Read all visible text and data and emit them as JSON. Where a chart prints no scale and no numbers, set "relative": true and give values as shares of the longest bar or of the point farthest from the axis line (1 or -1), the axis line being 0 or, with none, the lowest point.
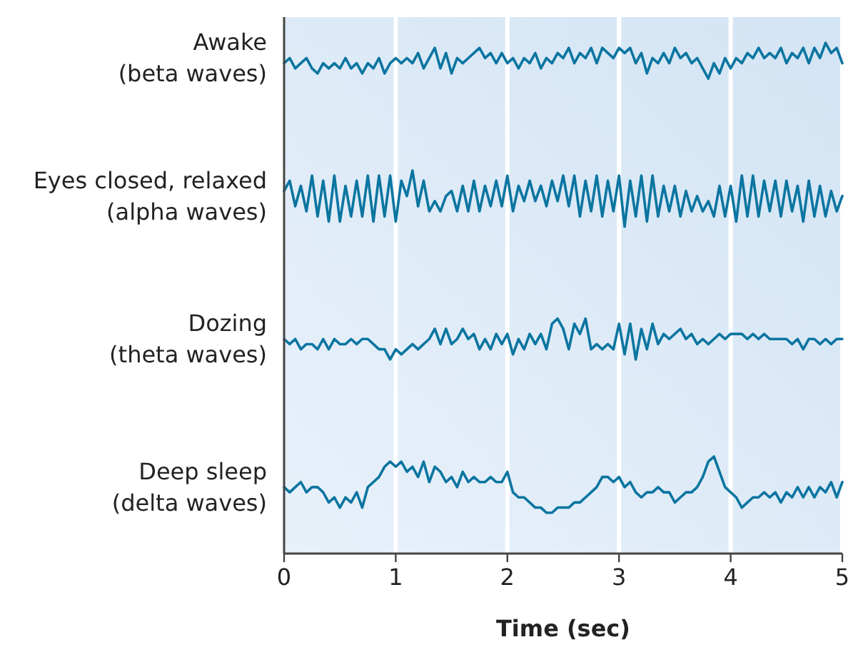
{
  "chart_data": {
    "type": "line",
    "relative": true,
    "xlabel": "Time (sec)",
    "xlim": [
      0,
      5
    ],
    "xticks": [
      0,
      1,
      2,
      3,
      4,
      5
    ],
    "grid": "x",
    "tick_labels": "x",
    "marker": "none",
    "line_style": "solid",
    "x": [
      0,
      0.05,
      0.1,
      0.15,
      0.2,
      0.25,
      0.3,
      0.35,
      0.4,
      0.45,
      0.5,
      0.55,
      0.6,
      0.65,
      0.7,
      0.75,
      0.8,
      0.85,
      0.9,
      0.95,
      1,
      1.05,
      1.1,
      1.15,
      1.2,
      1.25,
      1.3,
      1.35,
      1.4,
      1.45,
      1.5,
      1.55,
      1.6,
      1.65,
      1.7,
      1.75,
      1.8,
      1.85,
      1.9,
      1.95,
      2,
      2.05,
      2.1,
      2.15,
      2.2,
      2.25,
      2.3,
      2.35,
      2.4,
      2.45,
      2.5,
      2.55,
      2.6,
      2.65,
      2.7,
      2.75,
      2.8,
      2.85,
      2.9,
      2.95,
      3,
      3.05,
      3.1,
      3.15,
      3.2,
      3.25,
      3.3,
      3.35,
      3.4,
      3.45,
      3.5,
      3.55,
      3.6,
      3.65,
      3.7,
      3.75,
      3.8,
      3.85,
      3.9,
      3.95,
      4,
      4.05,
      4.1,
      4.15,
      4.2,
      4.25,
      4.3,
      4.35,
      4.4,
      4.45,
      4.5,
      4.55,
      4.6,
      4.65,
      4.7,
      4.75,
      4.8,
      4.85,
      4.9,
      4.95,
      5
    ],
    "series": [
      {
        "name": "Awake\n(beta waves)",
        "color": "#0b75a0",
        "values": [
          0.96,
          0.97,
          0.95,
          0.96,
          0.97,
          0.95,
          0.94,
          0.96,
          0.95,
          0.96,
          0.95,
          0.97,
          0.95,
          0.96,
          0.94,
          0.96,
          0.95,
          0.97,
          0.94,
          0.96,
          0.97,
          0.96,
          0.97,
          0.96,
          0.98,
          0.95,
          0.97,
          0.99,
          0.95,
          0.98,
          0.94,
          0.97,
          0.96,
          0.97,
          0.98,
          0.99,
          0.97,
          0.98,
          0.96,
          0.98,
          0.96,
          0.97,
          0.95,
          0.97,
          0.96,
          0.98,
          0.95,
          0.97,
          0.96,
          0.98,
          0.97,
          0.99,
          0.96,
          0.98,
          0.97,
          0.99,
          0.96,
          0.99,
          0.98,
          0.97,
          0.99,
          0.98,
          0.99,
          0.96,
          0.98,
          0.94,
          0.97,
          0.96,
          0.98,
          0.96,
          0.99,
          0.97,
          0.98,
          0.96,
          0.97,
          0.95,
          0.93,
          0.96,
          0.94,
          0.97,
          0.95,
          0.97,
          0.96,
          0.98,
          0.97,
          0.99,
          0.97,
          0.98,
          0.97,
          0.99,
          0.96,
          0.98,
          0.97,
          0.99,
          0.96,
          0.99,
          0.97,
          1.0,
          0.98,
          0.99,
          0.96
        ]
      },
      {
        "name": "Eyes closed, relaxed\n(alpha waves)",
        "color": "#0b75a0",
        "values": [
          0.71,
          0.73,
          0.68,
          0.72,
          0.67,
          0.74,
          0.66,
          0.73,
          0.65,
          0.74,
          0.65,
          0.72,
          0.66,
          0.73,
          0.66,
          0.74,
          0.65,
          0.74,
          0.66,
          0.74,
          0.65,
          0.73,
          0.7,
          0.75,
          0.68,
          0.73,
          0.67,
          0.69,
          0.67,
          0.7,
          0.71,
          0.67,
          0.72,
          0.67,
          0.73,
          0.67,
          0.72,
          0.68,
          0.73,
          0.68,
          0.74,
          0.67,
          0.72,
          0.69,
          0.73,
          0.69,
          0.72,
          0.68,
          0.73,
          0.69,
          0.74,
          0.68,
          0.74,
          0.66,
          0.73,
          0.67,
          0.74,
          0.66,
          0.73,
          0.67,
          0.74,
          0.64,
          0.73,
          0.66,
          0.74,
          0.65,
          0.74,
          0.66,
          0.72,
          0.67,
          0.72,
          0.66,
          0.71,
          0.67,
          0.7,
          0.67,
          0.69,
          0.66,
          0.72,
          0.66,
          0.72,
          0.65,
          0.74,
          0.66,
          0.74,
          0.66,
          0.73,
          0.67,
          0.73,
          0.66,
          0.73,
          0.67,
          0.72,
          0.65,
          0.73,
          0.66,
          0.72,
          0.66,
          0.71,
          0.67,
          0.7
        ]
      },
      {
        "name": "Dozing\n(theta waves)",
        "color": "#0b75a0",
        "values": [
          0.42,
          0.41,
          0.42,
          0.4,
          0.41,
          0.41,
          0.4,
          0.42,
          0.4,
          0.42,
          0.41,
          0.41,
          0.42,
          0.41,
          0.42,
          0.42,
          0.41,
          0.4,
          0.4,
          0.38,
          0.4,
          0.39,
          0.4,
          0.41,
          0.4,
          0.41,
          0.42,
          0.44,
          0.41,
          0.44,
          0.41,
          0.42,
          0.44,
          0.42,
          0.43,
          0.4,
          0.42,
          0.4,
          0.43,
          0.41,
          0.43,
          0.39,
          0.42,
          0.4,
          0.43,
          0.41,
          0.43,
          0.4,
          0.45,
          0.46,
          0.44,
          0.4,
          0.45,
          0.43,
          0.46,
          0.4,
          0.41,
          0.4,
          0.41,
          0.4,
          0.45,
          0.39,
          0.45,
          0.38,
          0.44,
          0.4,
          0.45,
          0.41,
          0.43,
          0.42,
          0.43,
          0.44,
          0.42,
          0.43,
          0.41,
          0.42,
          0.41,
          0.42,
          0.43,
          0.42,
          0.43,
          0.43,
          0.43,
          0.42,
          0.43,
          0.42,
          0.43,
          0.42,
          0.42,
          0.42,
          0.42,
          0.41,
          0.42,
          0.4,
          0.42,
          0.42,
          0.41,
          0.42,
          0.41,
          0.42,
          0.42
        ]
      },
      {
        "name": "Deep sleep\n(delta waves)",
        "color": "#0b75a0",
        "values": [
          0.13,
          0.12,
          0.13,
          0.14,
          0.12,
          0.13,
          0.13,
          0.12,
          0.1,
          0.11,
          0.09,
          0.11,
          0.1,
          0.12,
          0.09,
          0.13,
          0.14,
          0.15,
          0.17,
          0.18,
          0.17,
          0.18,
          0.16,
          0.17,
          0.15,
          0.18,
          0.14,
          0.17,
          0.16,
          0.14,
          0.15,
          0.13,
          0.16,
          0.14,
          0.15,
          0.14,
          0.14,
          0.15,
          0.14,
          0.14,
          0.16,
          0.12,
          0.11,
          0.11,
          0.1,
          0.09,
          0.09,
          0.08,
          0.08,
          0.09,
          0.09,
          0.09,
          0.1,
          0.1,
          0.11,
          0.12,
          0.13,
          0.15,
          0.15,
          0.14,
          0.15,
          0.13,
          0.14,
          0.12,
          0.11,
          0.12,
          0.12,
          0.13,
          0.12,
          0.12,
          0.1,
          0.11,
          0.12,
          0.12,
          0.13,
          0.15,
          0.18,
          0.19,
          0.16,
          0.13,
          0.12,
          0.11,
          0.09,
          0.1,
          0.11,
          0.11,
          0.12,
          0.11,
          0.12,
          0.1,
          0.12,
          0.11,
          0.13,
          0.11,
          0.13,
          0.11,
          0.13,
          0.12,
          0.14,
          0.11,
          0.14
        ]
      }
    ]
  }
}
